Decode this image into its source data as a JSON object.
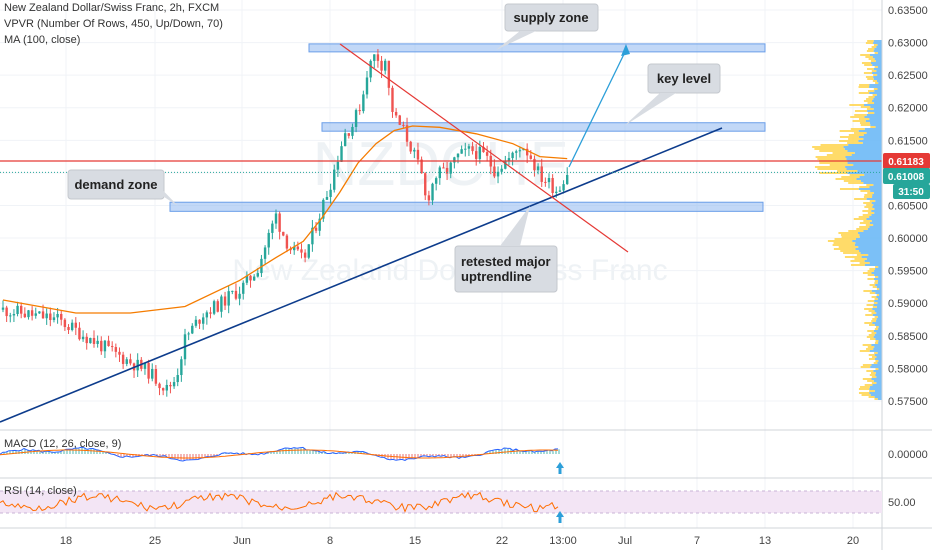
{
  "header": {
    "title": "New Zealand Dollar/Swiss Franc, 2h, FXCM",
    "vpvr": "VPVR (Number Of Rows, 450, Up/Down, 70)",
    "ma": "MA (100, close)"
  },
  "watermark": {
    "symbol": "NZDCHF",
    "name": "New Zealand Dollar/Swiss Franc"
  },
  "annotations": {
    "supply_zone": "supply zone",
    "key_level": "key level",
    "demand_zone": "demand zone",
    "retest_line1": "retested major",
    "retest_line2": "uptrendline"
  },
  "indicators": {
    "macd": "MACD (12, 26, close, 9)",
    "rsi": "RSI (14, close)",
    "macd_value": "0.00000",
    "rsi_value": "50.00"
  },
  "price_tags": {
    "current": "0.61183",
    "secondary": "0.61008",
    "countdown": "31:50"
  },
  "colors": {
    "up": "#26a69a",
    "down": "#ef5350",
    "ma": "#f57c00",
    "zone": "#90b8f0",
    "trendline": "#0d3c8c",
    "downtrend": "#e53935",
    "arrow": "#2c9fd9",
    "current_tag": "#e53935",
    "secondary_tag": "#26a69a",
    "rsi_band": "#f3e5f5"
  },
  "chart_data": {
    "type": "candlestick",
    "y_axis": {
      "ticks": [
        "0.63500",
        "0.63000",
        "0.62500",
        "0.62000",
        "0.61500",
        "0.61000",
        "0.60500",
        "0.60000",
        "0.59500",
        "0.59000",
        "0.58500",
        "0.58000",
        "0.57500"
      ],
      "ylim": [
        0.5715,
        0.6375
      ]
    },
    "x_axis": {
      "ticks": [
        "18",
        "25",
        "Jun",
        "8",
        "15",
        "22",
        "13:00",
        "Jul",
        "7",
        "13",
        "20"
      ]
    },
    "series": [
      {
        "name": "NZDCHF close (approx.)",
        "path": [
          [
            0,
            0.589
          ],
          [
            6,
            0.5875
          ],
          [
            12,
            0.5825
          ],
          [
            16,
            0.5795
          ],
          [
            18,
            0.5768
          ],
          [
            19,
            0.5785
          ],
          [
            20,
            0.5845
          ],
          [
            22,
            0.5885
          ],
          [
            24,
            0.59
          ],
          [
            25,
            0.5912
          ],
          [
            26,
            0.592
          ],
          [
            27,
            0.5935
          ],
          [
            28,
            0.5955
          ],
          [
            29,
            0.5995
          ],
          [
            30,
            0.6035
          ],
          [
            30.5,
            0.6015
          ],
          [
            31.5,
            0.5985
          ],
          [
            33,
            0.5965
          ],
          [
            34,
            0.6005
          ],
          [
            35,
            0.6045
          ],
          [
            36,
            0.6085
          ],
          [
            37,
            0.6135
          ],
          [
            37.5,
            0.616
          ],
          [
            38.5,
            0.6175
          ],
          [
            39.5,
            0.6215
          ],
          [
            40,
            0.6255
          ],
          [
            41,
            0.6285
          ],
          [
            41.5,
            0.6265
          ],
          [
            42,
            0.6275
          ],
          [
            42.5,
            0.6215
          ],
          [
            43,
            0.6185
          ],
          [
            44,
            0.6165
          ],
          [
            45,
            0.6135
          ],
          [
            46,
            0.6095
          ],
          [
            46.5,
            0.6055
          ],
          [
            47.5,
            0.6095
          ],
          [
            49,
            0.6105
          ],
          [
            50,
            0.6125
          ],
          [
            51.5,
            0.6135
          ],
          [
            53,
            0.6125
          ],
          [
            54,
            0.6105
          ],
          [
            55,
            0.6115
          ],
          [
            56,
            0.6125
          ],
          [
            57,
            0.6145
          ],
          [
            58,
            0.6125
          ],
          [
            59,
            0.6095
          ],
          [
            60,
            0.6085
          ],
          [
            61,
            0.6072
          ],
          [
            61.5,
            0.609
          ],
          [
            62,
            0.6101
          ]
        ]
      },
      {
        "name": "MA (100, close)",
        "path": [
          [
            0,
            0.5905
          ],
          [
            8,
            0.5885
          ],
          [
            14,
            0.5885
          ],
          [
            20,
            0.5895
          ],
          [
            26,
            0.5935
          ],
          [
            30,
            0.597
          ],
          [
            33,
            0.5995
          ],
          [
            35,
            0.603
          ],
          [
            37,
            0.607
          ],
          [
            39,
            0.6115
          ],
          [
            41,
            0.6145
          ],
          [
            43,
            0.6165
          ],
          [
            45,
            0.6172
          ],
          [
            48,
            0.617
          ],
          [
            52,
            0.616
          ],
          [
            56,
            0.6145
          ],
          [
            59,
            0.6125
          ],
          [
            62,
            0.6122
          ]
        ]
      }
    ],
    "zones": [
      {
        "label": "supply zone",
        "from": 0.6288,
        "to": 0.6298
      },
      {
        "label": "key level",
        "from": 0.6164,
        "to": 0.6177
      },
      {
        "label": "demand zone",
        "from": 0.6041,
        "to": 0.6055
      }
    ],
    "levels": {
      "current": 0.61183,
      "secondary": 0.61008
    },
    "indicator_ticks": {
      "macd": "0.00000",
      "rsi": "50.00"
    }
  }
}
